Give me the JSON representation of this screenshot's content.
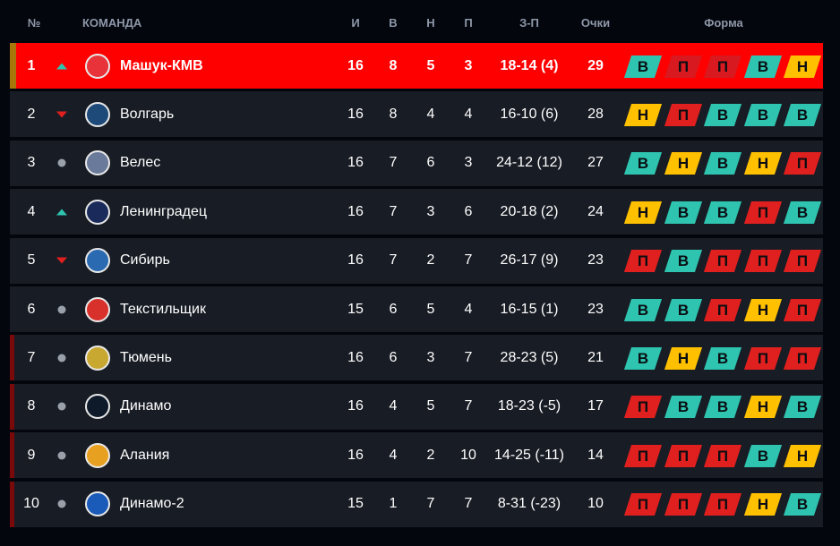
{
  "header": {
    "pos": "№",
    "team": "КОМАНДА",
    "played": "И",
    "won": "В",
    "drawn": "Н",
    "lost": "П",
    "goals": "З-П",
    "points": "Очки",
    "form": "Форма"
  },
  "colors": {
    "win": "#2ec4b0",
    "draw": "#ffc000",
    "loss": "#e0201f",
    "leader": "#ff0000",
    "row": "#181c24",
    "promotion_strip": "#a8770a",
    "relegation_strip": "#7a0a0a"
  },
  "rows": [
    {
      "pos": "1",
      "trend": "up",
      "team": "Машук-КМВ",
      "logo": "#e8333a",
      "played": "16",
      "won": "8",
      "drawn": "5",
      "lost": "3",
      "goals": "18-14 (4)",
      "points": "29",
      "form": [
        "В",
        "П",
        "П",
        "В",
        "Н"
      ],
      "zone": "promotion"
    },
    {
      "pos": "2",
      "trend": "down",
      "team": "Волгарь",
      "logo": "#1e4a7a",
      "played": "16",
      "won": "8",
      "drawn": "4",
      "lost": "4",
      "goals": "16-10 (6)",
      "points": "28",
      "form": [
        "Н",
        "П",
        "В",
        "В",
        "В"
      ],
      "zone": ""
    },
    {
      "pos": "3",
      "trend": "same",
      "team": "Велес",
      "logo": "#6a7a9a",
      "played": "16",
      "won": "7",
      "drawn": "6",
      "lost": "3",
      "goals": "24-12 (12)",
      "points": "27",
      "form": [
        "В",
        "Н",
        "В",
        "Н",
        "П"
      ],
      "zone": ""
    },
    {
      "pos": "4",
      "trend": "up",
      "team": "Ленинградец",
      "logo": "#1a2a5a",
      "played": "16",
      "won": "7",
      "drawn": "3",
      "lost": "6",
      "goals": "20-18 (2)",
      "points": "24",
      "form": [
        "Н",
        "В",
        "В",
        "П",
        "В"
      ],
      "zone": ""
    },
    {
      "pos": "5",
      "trend": "down",
      "team": "Сибирь",
      "logo": "#2a6ab0",
      "played": "16",
      "won": "7",
      "drawn": "2",
      "lost": "7",
      "goals": "26-17 (9)",
      "points": "23",
      "form": [
        "П",
        "В",
        "П",
        "П",
        "П"
      ],
      "zone": ""
    },
    {
      "pos": "6",
      "trend": "same",
      "team": "Текстильщик",
      "logo": "#d8302a",
      "played": "15",
      "won": "6",
      "drawn": "5",
      "lost": "4",
      "goals": "16-15 (1)",
      "points": "23",
      "form": [
        "В",
        "В",
        "П",
        "Н",
        "П"
      ],
      "zone": ""
    },
    {
      "pos": "7",
      "trend": "same",
      "team": "Тюмень",
      "logo": "#c8a830",
      "played": "16",
      "won": "6",
      "drawn": "3",
      "lost": "7",
      "goals": "28-23 (5)",
      "points": "21",
      "form": [
        "В",
        "Н",
        "В",
        "П",
        "П"
      ],
      "zone": "relegation"
    },
    {
      "pos": "8",
      "trend": "same",
      "team": "Динамо",
      "logo": "#0e1a2a",
      "played": "16",
      "won": "4",
      "drawn": "5",
      "lost": "7",
      "goals": "18-23 (-5)",
      "points": "17",
      "form": [
        "П",
        "В",
        "В",
        "Н",
        "В"
      ],
      "zone": "relegation"
    },
    {
      "pos": "9",
      "trend": "same",
      "team": "Алания",
      "logo": "#e8a020",
      "played": "16",
      "won": "4",
      "drawn": "2",
      "lost": "10",
      "goals": "14-25 (-11)",
      "points": "14",
      "form": [
        "П",
        "П",
        "П",
        "В",
        "Н"
      ],
      "zone": "relegation"
    },
    {
      "pos": "10",
      "trend": "same",
      "team": "Динамо-2",
      "logo": "#1a5ab8",
      "played": "15",
      "won": "1",
      "drawn": "7",
      "lost": "7",
      "goals": "8-31 (-23)",
      "points": "10",
      "form": [
        "П",
        "П",
        "П",
        "Н",
        "В"
      ],
      "zone": "relegation"
    }
  ]
}
